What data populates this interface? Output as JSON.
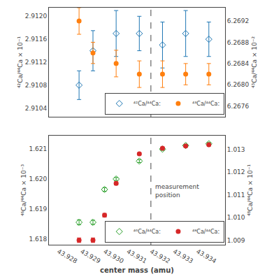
{
  "chart_data": [
    {
      "type": "scatter",
      "y_label": "⁴²Ca/⁴⁴Ca × 10⁻¹",
      "y2_label": "⁴³Ca/⁴⁴Ca × 10⁻²",
      "x": [
        43.9289,
        43.9295,
        43.9305,
        43.9315,
        43.9325,
        43.9335,
        43.9345
      ],
      "series": [
        {
          "name": "⁴²Ca/⁴⁴Ca:",
          "marker": "diamond-open",
          "values": [
            2.9108,
            2.9114,
            2.9117,
            2.9117,
            2.9115,
            2.9117,
            2.9116
          ],
          "yerr": [
            0.00025,
            0.00035,
            0.0004,
            0.0003,
            0.0004,
            0.0004,
            0.0003
          ]
        },
        {
          "name": "⁴³Ca/⁴⁴Ca:",
          "marker": "circle",
          "axis": "y2",
          "values": [
            6.2692,
            6.2686,
            6.2684,
            6.2682,
            6.2682,
            6.2682,
            6.2682
          ],
          "yerr": [
            0.00025,
            0.0002,
            0.00025,
            0.00025,
            0.00025,
            0.0002,
            0.0002
          ]
        }
      ],
      "xlim": [
        43.9276,
        43.9352
      ],
      "xticks": [
        43.928,
        43.929,
        {
          "value": 43.93,
          "label": "43.930"
        },
        43.931,
        43.932,
        43.933,
        43.934
      ],
      "ylim": [
        2.91025,
        2.91215
      ],
      "yticks": [
        2.9104,
        2.9108,
        2.9112,
        2.9116,
        {
          "value": 2.912,
          "label": "2.9120"
        }
      ],
      "y2lim": [
        6.2674,
        6.26945
      ],
      "y2ticks": [
        6.2676,
        {
          "value": 6.268,
          "label": "6.2680"
        },
        6.2684,
        6.2688,
        6.2692
      ],
      "vline_x": 43.932,
      "tick_labels": "y",
      "legend": "lower right",
      "grid": false
    },
    {
      "type": "scatter",
      "x_label": "center mass (amu)",
      "y_label": "⁴⁶Ca/⁴⁴Ca × 10⁻³",
      "y2_label": "⁴⁸Ca/⁴⁴Ca × 10⁻¹",
      "x": [
        43.9289,
        43.9295,
        43.93,
        43.9305,
        43.9315,
        43.9325,
        43.9335,
        43.9345
      ],
      "series": [
        {
          "name": "⁴⁶Ca/⁴⁴Ca:",
          "marker": "diamond-open",
          "values": [
            1.61855,
            1.61855,
            1.61965,
            1.62,
            1.6206,
            1.621,
            1.62112,
            1.62118
          ],
          "yerr": [
            8e-05,
            7e-05,
            6e-05,
            5e-05,
            5e-05,
            4e-05,
            4e-05,
            4e-05
          ]
        },
        {
          "name": "⁴⁸Ca/⁴⁴Ca:",
          "marker": "circle",
          "axis": "y2",
          "values": [
            1.009,
            1.009,
            1.0101,
            1.0115,
            1.0128,
            1.01305,
            1.01315,
            1.0132
          ],
          "yerr": [
            0.0001,
            0.0001,
            8e-05,
            7e-05,
            5e-05,
            5e-05,
            4e-05,
            4e-05
          ]
        }
      ],
      "xlim": [
        43.9276,
        43.9352
      ],
      "xticks": [
        43.928,
        43.929,
        {
          "value": 43.93,
          "label": "43.930"
        },
        43.931,
        43.932,
        43.933,
        43.934
      ],
      "ylim": [
        1.6178,
        1.62145
      ],
      "yticks": [
        1.618,
        1.619,
        {
          "value": 1.62,
          "label": "1.620"
        },
        1.621
      ],
      "y2lim": [
        1.0088,
        1.0136
      ],
      "y2ticks": [
        1.009,
        {
          "value": 1.01,
          "label": "1.010"
        },
        1.011,
        1.012,
        1.013
      ],
      "vline_x": 43.932,
      "annotation": "measurement\nposition",
      "legend": "lower right",
      "grid": false
    }
  ]
}
